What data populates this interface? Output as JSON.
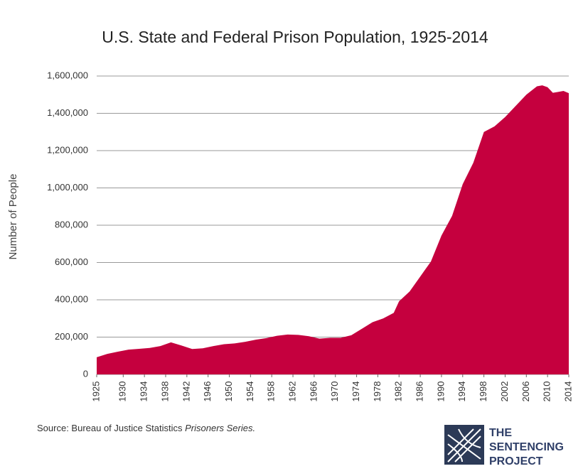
{
  "chart_data": {
    "type": "area",
    "title": "U.S. State and Federal Prison Population, 1925-2014",
    "y_label": "Number of People",
    "x": [
      1925,
      1927,
      1929,
      1931,
      1933,
      1935,
      1937,
      1939,
      1941,
      1943,
      1945,
      1947,
      1949,
      1951,
      1953,
      1955,
      1957,
      1959,
      1961,
      1963,
      1965,
      1967,
      1969,
      1971,
      1973,
      1975,
      1977,
      1979,
      1981,
      1982,
      1984,
      1986,
      1988,
      1990,
      1992,
      1994,
      1996,
      1998,
      2000,
      2002,
      2004,
      2006,
      2008,
      2009,
      2010,
      2011,
      2012,
      2013,
      2014
    ],
    "values": [
      92000,
      110000,
      122000,
      133000,
      137000,
      142000,
      152000,
      172000,
      155000,
      136000,
      140000,
      152000,
      162000,
      166000,
      175000,
      186000,
      195000,
      207000,
      214000,
      212000,
      205000,
      192000,
      196000,
      196000,
      210000,
      245000,
      280000,
      300000,
      330000,
      392000,
      445000,
      525000,
      605000,
      745000,
      850000,
      1020000,
      1135000,
      1300000,
      1330000,
      1380000,
      1440000,
      1500000,
      1545000,
      1550000,
      1540000,
      1510000,
      1515000,
      1520000,
      1508000
    ],
    "color": "#c5003e",
    "xlim": [
      1925,
      2014
    ],
    "xticks": [
      1925,
      1930,
      1934,
      1938,
      1942,
      1946,
      1950,
      1954,
      1958,
      1962,
      1966,
      1970,
      1974,
      1978,
      1982,
      1986,
      1990,
      1994,
      1998,
      2002,
      2006,
      2010,
      2014
    ],
    "ylim": [
      0,
      1600000
    ],
    "yticks": [
      0,
      {
        "value": 200000,
        "label": "200,000"
      },
      {
        "value": 400000,
        "label": "400,000"
      },
      {
        "value": 600000,
        "label": "600,000"
      },
      {
        "value": 800000,
        "label": "800,000"
      },
      {
        "value": 1000000,
        "label": "1,000,000"
      },
      {
        "value": 1200000,
        "label": "1,200,000"
      },
      {
        "value": 1400000,
        "label": "1,400,000"
      },
      {
        "value": 1600000,
        "label": "1,600,000"
      }
    ],
    "grid": true
  },
  "source": {
    "text": "Source: Bureau of Justice Statistics ",
    "italic": "Prisoners Series."
  },
  "logo": [
    "THE",
    "SENTENCING",
    "PROJECT"
  ]
}
